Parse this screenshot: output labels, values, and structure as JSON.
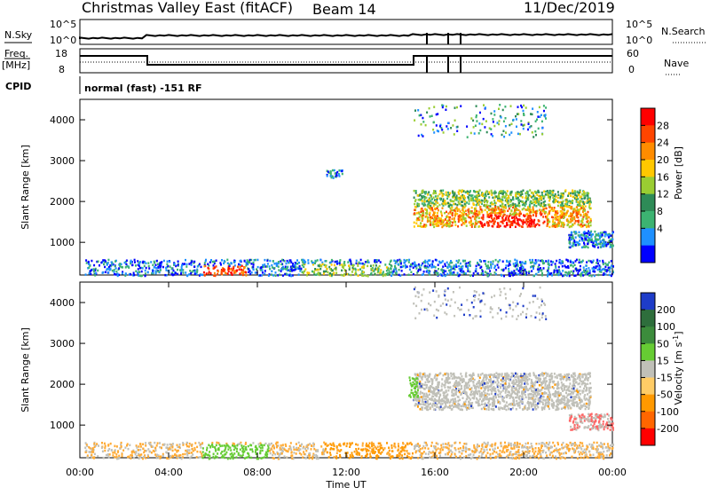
{
  "header": {
    "radar": "Christmas Valley East (fitACF)",
    "beam": "Beam 14",
    "date": "11/Dec/2019"
  },
  "top_panels": {
    "nsky_label": "N.Sky",
    "nsky_ticks": [
      "10^5",
      "10^0"
    ],
    "nsearch_label": "N.Search",
    "nsearch_ticks": [
      "10^5",
      "10^0"
    ],
    "freq_label": "Freq.",
    "freq_unit": "[MHz]",
    "freq_ticks": [
      "18",
      "8"
    ],
    "nave_label": "Nave",
    "nave_ticks": [
      "60",
      "0"
    ],
    "cpid_label": "CPID",
    "cpid_text": "normal (fast) -151 RF"
  },
  "chart_data": [
    {
      "type": "heatmap",
      "name": "power-panel",
      "ylabel": "Slant Range [km]",
      "xlabel": "",
      "ylim": [
        200,
        4500
      ],
      "yticks": [
        "1000",
        "2000",
        "3000",
        "4000"
      ],
      "ytick_values": [
        1000,
        2000,
        3000,
        4000
      ],
      "colorbar_label": "Power [dB]",
      "colorbar_ticks": [
        "28",
        "24",
        "20",
        "16",
        "12",
        "8",
        "4"
      ],
      "colorbar_values": [
        28,
        24,
        20,
        16,
        12,
        8,
        4
      ],
      "colorbar_colors": [
        "#ff0000",
        "#ff4500",
        "#ff8c00",
        "#ffc800",
        "#9acd32",
        "#2e8b57",
        "#3cb371",
        "#1e90ff",
        "#0000ff"
      ]
    },
    {
      "type": "heatmap",
      "name": "velocity-panel",
      "ylabel": "Slant Range [km]",
      "xlabel": "Time UT",
      "ylim": [
        200,
        4500
      ],
      "yticks": [
        "1000",
        "2000",
        "3000",
        "4000"
      ],
      "ytick_values": [
        1000,
        2000,
        3000,
        4000
      ],
      "xticks": [
        "00:00",
        "04:00",
        "08:00",
        "12:00",
        "16:00",
        "20:00",
        "00:00"
      ],
      "xtick_hours": [
        0,
        4,
        8,
        12,
        16,
        20,
        24
      ],
      "colorbar_label": "Velocity [m s^-1]",
      "colorbar_ticks": [
        "200",
        "100",
        "50",
        "15",
        "-15",
        "-50",
        "-100",
        "-200"
      ],
      "colorbar_values": [
        200,
        100,
        50,
        15,
        -15,
        -50,
        -100,
        -200
      ],
      "colorbar_colors": [
        "#1e3cc8",
        "#2e6e3c",
        "#3c8c3c",
        "#66cc33",
        "#c0c0b8",
        "#ffcc66",
        "#ff9900",
        "#ff6600",
        "#ff0000"
      ]
    }
  ]
}
